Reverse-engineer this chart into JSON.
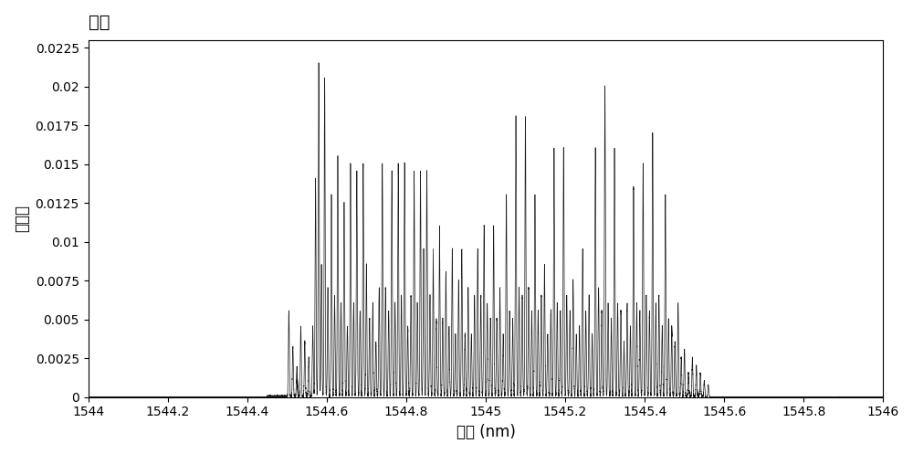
{
  "title": "光谱",
  "ylabel": "反射率",
  "xlabel": "波长 (nm)",
  "xlim": [
    1544,
    1546
  ],
  "ylim": [
    0,
    0.023
  ],
  "yticks": [
    0,
    0.0025,
    0.005,
    0.0075,
    0.01,
    0.0125,
    0.015,
    0.0175,
    0.02,
    0.0225
  ],
  "xticks": [
    1544,
    1544.2,
    1544.4,
    1544.6,
    1544.8,
    1545,
    1545.2,
    1545.4,
    1545.6,
    1545.8,
    1546
  ],
  "background_color": "#ffffff",
  "line_color": "#1a1a1a",
  "peaks": [
    [
      1544.505,
      0.0055
    ],
    [
      1544.515,
      0.0032
    ],
    [
      1544.525,
      0.0019
    ],
    [
      1544.535,
      0.0045
    ],
    [
      1544.545,
      0.0035
    ],
    [
      1544.555,
      0.0025
    ],
    [
      1544.565,
      0.0045
    ],
    [
      1544.572,
      0.014
    ],
    [
      1544.58,
      0.0215
    ],
    [
      1544.587,
      0.0085
    ],
    [
      1544.595,
      0.0205
    ],
    [
      1544.603,
      0.007
    ],
    [
      1544.612,
      0.013
    ],
    [
      1544.62,
      0.0065
    ],
    [
      1544.628,
      0.0155
    ],
    [
      1544.636,
      0.006
    ],
    [
      1544.644,
      0.0125
    ],
    [
      1544.652,
      0.0045
    ],
    [
      1544.66,
      0.015
    ],
    [
      1544.668,
      0.006
    ],
    [
      1544.676,
      0.0145
    ],
    [
      1544.684,
      0.0055
    ],
    [
      1544.692,
      0.015
    ],
    [
      1544.7,
      0.0085
    ],
    [
      1544.708,
      0.005
    ],
    [
      1544.716,
      0.006
    ],
    [
      1544.724,
      0.0035
    ],
    [
      1544.732,
      0.007
    ],
    [
      1544.74,
      0.015
    ],
    [
      1544.748,
      0.007
    ],
    [
      1544.756,
      0.0055
    ],
    [
      1544.764,
      0.0145
    ],
    [
      1544.772,
      0.006
    ],
    [
      1544.78,
      0.015
    ],
    [
      1544.788,
      0.0065
    ],
    [
      1544.796,
      0.015
    ],
    [
      1544.804,
      0.0045
    ],
    [
      1544.812,
      0.0065
    ],
    [
      1544.82,
      0.0145
    ],
    [
      1544.828,
      0.006
    ],
    [
      1544.836,
      0.0145
    ],
    [
      1544.844,
      0.0095
    ],
    [
      1544.852,
      0.0145
    ],
    [
      1544.86,
      0.0065
    ],
    [
      1544.868,
      0.0095
    ],
    [
      1544.876,
      0.005
    ],
    [
      1544.884,
      0.011
    ],
    [
      1544.892,
      0.005
    ],
    [
      1544.9,
      0.008
    ],
    [
      1544.908,
      0.0045
    ],
    [
      1544.916,
      0.0095
    ],
    [
      1544.924,
      0.004
    ],
    [
      1544.932,
      0.0075
    ],
    [
      1544.94,
      0.0095
    ],
    [
      1544.948,
      0.004
    ],
    [
      1544.956,
      0.007
    ],
    [
      1544.964,
      0.004
    ],
    [
      1544.972,
      0.0065
    ],
    [
      1544.98,
      0.0095
    ],
    [
      1544.988,
      0.0065
    ],
    [
      1544.996,
      0.011
    ],
    [
      1545.004,
      0.006
    ],
    [
      1545.012,
      0.005
    ],
    [
      1545.02,
      0.011
    ],
    [
      1545.028,
      0.005
    ],
    [
      1545.036,
      0.007
    ],
    [
      1545.044,
      0.004
    ],
    [
      1545.052,
      0.013
    ],
    [
      1545.06,
      0.0055
    ],
    [
      1545.068,
      0.005
    ],
    [
      1545.076,
      0.018
    ],
    [
      1545.084,
      0.007
    ],
    [
      1545.092,
      0.0065
    ],
    [
      1545.1,
      0.018
    ],
    [
      1545.108,
      0.007
    ],
    [
      1545.116,
      0.0055
    ],
    [
      1545.124,
      0.013
    ],
    [
      1545.132,
      0.0055
    ],
    [
      1545.14,
      0.0065
    ],
    [
      1545.148,
      0.0085
    ],
    [
      1545.156,
      0.004
    ],
    [
      1545.164,
      0.0055
    ],
    [
      1545.172,
      0.016
    ],
    [
      1545.18,
      0.006
    ],
    [
      1545.188,
      0.0055
    ],
    [
      1545.196,
      0.016
    ],
    [
      1545.204,
      0.0065
    ],
    [
      1545.212,
      0.0055
    ],
    [
      1545.22,
      0.0075
    ],
    [
      1545.228,
      0.004
    ],
    [
      1545.236,
      0.0045
    ],
    [
      1545.244,
      0.0095
    ],
    [
      1545.252,
      0.0055
    ],
    [
      1545.26,
      0.0065
    ],
    [
      1545.268,
      0.004
    ],
    [
      1545.276,
      0.016
    ],
    [
      1545.284,
      0.007
    ],
    [
      1545.292,
      0.0055
    ],
    [
      1545.3,
      0.02
    ],
    [
      1545.308,
      0.006
    ],
    [
      1545.316,
      0.005
    ],
    [
      1545.324,
      0.016
    ],
    [
      1545.332,
      0.006
    ],
    [
      1545.34,
      0.0055
    ],
    [
      1545.348,
      0.0035
    ],
    [
      1545.356,
      0.006
    ],
    [
      1545.364,
      0.0045
    ],
    [
      1545.372,
      0.0135
    ],
    [
      1545.38,
      0.006
    ],
    [
      1545.388,
      0.0055
    ],
    [
      1545.396,
      0.015
    ],
    [
      1545.404,
      0.0065
    ],
    [
      1545.412,
      0.0055
    ],
    [
      1545.42,
      0.017
    ],
    [
      1545.428,
      0.006
    ],
    [
      1545.436,
      0.0065
    ],
    [
      1545.444,
      0.0045
    ],
    [
      1545.452,
      0.013
    ],
    [
      1545.46,
      0.005
    ],
    [
      1545.468,
      0.0045
    ],
    [
      1545.476,
      0.0035
    ],
    [
      1545.484,
      0.006
    ],
    [
      1545.492,
      0.0025
    ],
    [
      1545.5,
      0.003
    ],
    [
      1545.51,
      0.0015
    ],
    [
      1545.52,
      0.0025
    ],
    [
      1545.53,
      0.002
    ],
    [
      1545.54,
      0.0015
    ],
    [
      1545.55,
      0.001
    ],
    [
      1545.56,
      0.0008
    ]
  ],
  "noise_level": 8e-05,
  "sigma": 0.0012,
  "title_fontsize": 14,
  "label_fontsize": 12,
  "tick_fontsize": 10
}
